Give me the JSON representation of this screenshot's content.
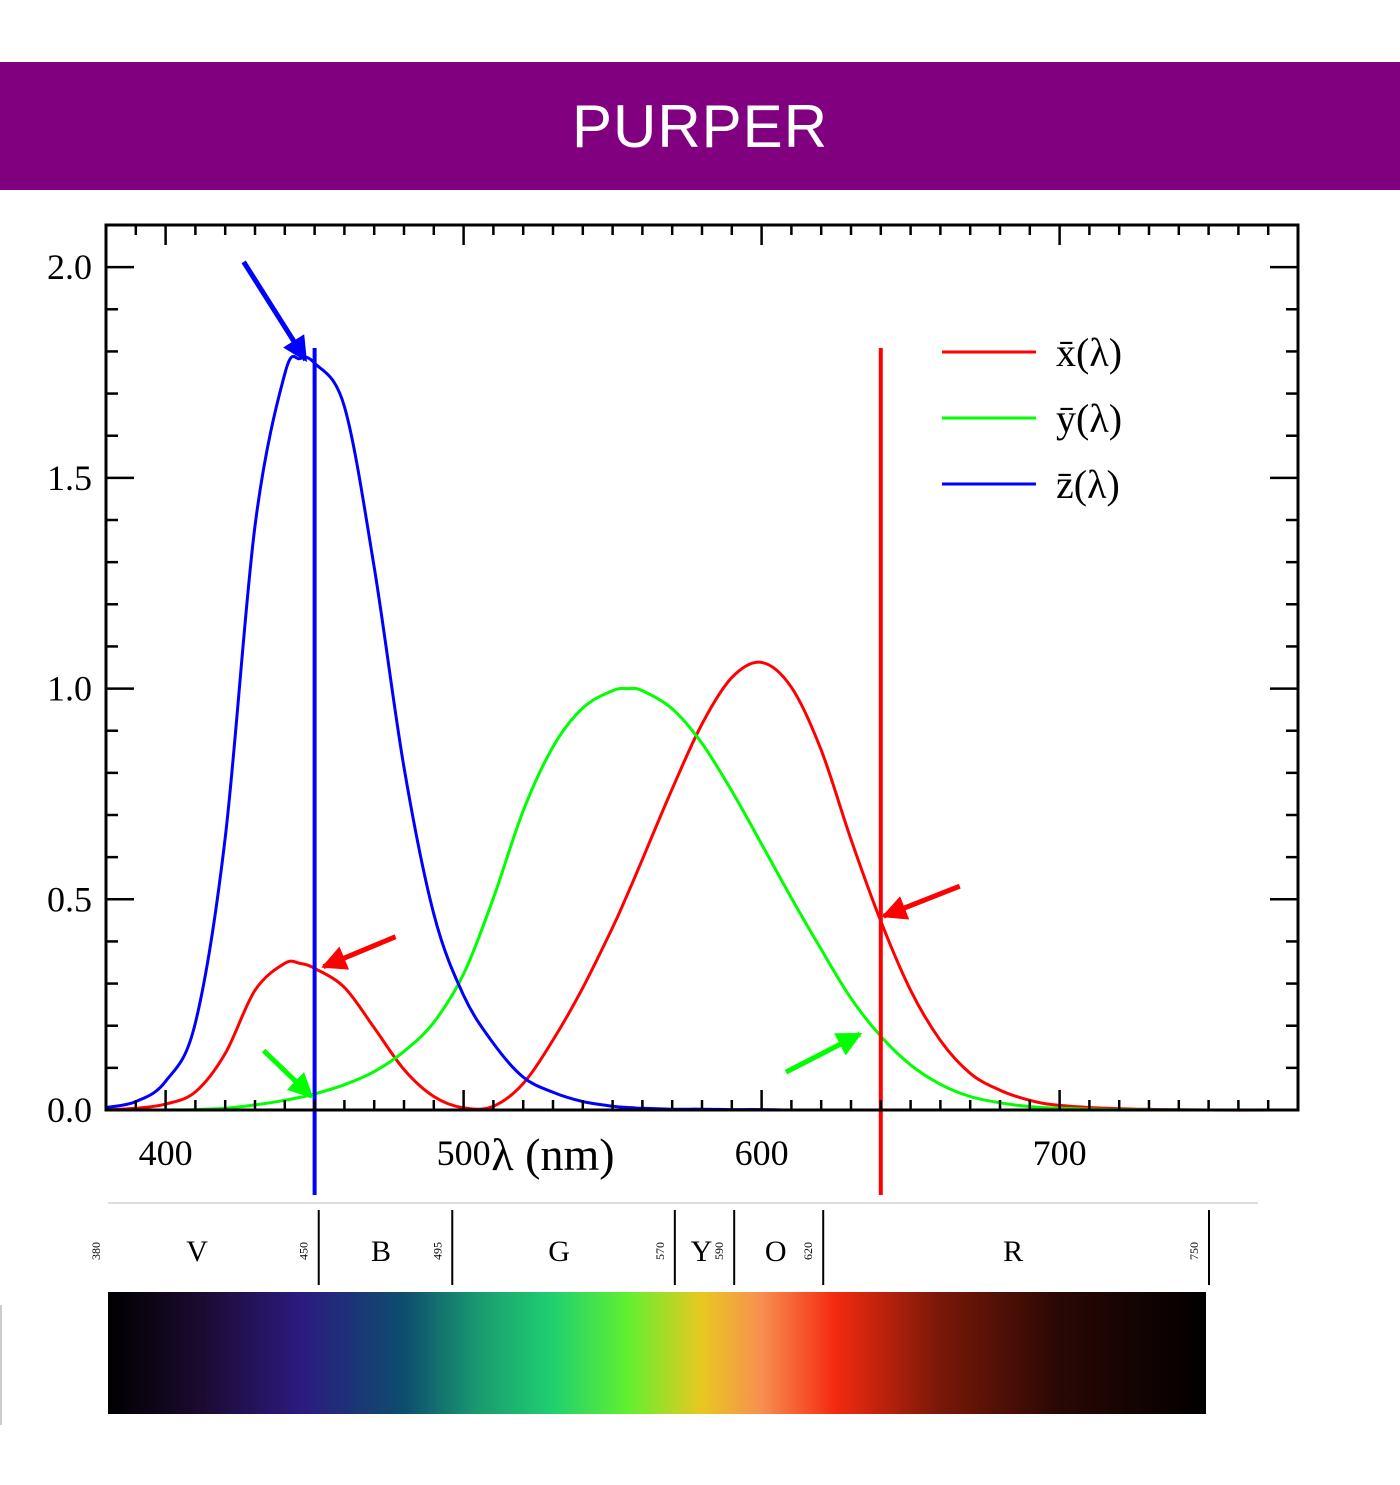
{
  "banner": {
    "title": "PURPER"
  },
  "chart_data": {
    "type": "line",
    "title": "",
    "xlabel": "λ (nm)",
    "ylabel": "",
    "xlim": [
      380,
      780
    ],
    "ylim": [
      0,
      2.1
    ],
    "xticks": [
      400,
      500,
      600,
      700
    ],
    "xtick_labels": [
      "400",
      "500",
      "600",
      "700"
    ],
    "yticks": [
      0,
      0.5,
      1,
      1.5,
      2
    ],
    "ytick_labels": [
      "0.0",
      "0.5",
      "1.0",
      "1.5",
      "2.0"
    ],
    "grid": false,
    "legend": "top-right",
    "x": [
      380,
      390,
      400,
      410,
      420,
      430,
      440,
      445,
      450,
      460,
      470,
      480,
      490,
      500,
      510,
      520,
      530,
      540,
      550,
      555,
      560,
      570,
      580,
      590,
      600,
      610,
      620,
      630,
      640,
      650,
      660,
      670,
      680,
      690,
      700,
      720,
      750,
      780
    ],
    "series": [
      {
        "name": "x̄(λ)",
        "color": "#ff0000",
        "values": [
          0.001,
          0.004,
          0.014,
          0.043,
          0.134,
          0.284,
          0.348,
          0.348,
          0.336,
          0.291,
          0.195,
          0.096,
          0.032,
          0.005,
          0.009,
          0.063,
          0.166,
          0.29,
          0.433,
          0.512,
          0.595,
          0.762,
          0.916,
          1.026,
          1.062,
          1.003,
          0.854,
          0.642,
          0.448,
          0.284,
          0.165,
          0.087,
          0.047,
          0.023,
          0.011,
          0.003,
          0.0,
          0.0
        ]
      },
      {
        "name": "ȳ(λ)",
        "color": "#00ff00",
        "values": [
          0.0,
          0.0,
          0.0,
          0.001,
          0.004,
          0.012,
          0.023,
          0.03,
          0.038,
          0.06,
          0.091,
          0.139,
          0.208,
          0.323,
          0.503,
          0.71,
          0.862,
          0.954,
          0.995,
          1.0,
          0.995,
          0.952,
          0.87,
          0.757,
          0.631,
          0.503,
          0.381,
          0.265,
          0.175,
          0.107,
          0.061,
          0.032,
          0.017,
          0.008,
          0.004,
          0.001,
          0.0,
          0.0
        ]
      },
      {
        "name": "z̄(λ)",
        "color": "#0000ff",
        "values": [
          0.006,
          0.02,
          0.068,
          0.207,
          0.646,
          1.386,
          1.747,
          1.783,
          1.772,
          1.669,
          1.288,
          0.813,
          0.465,
          0.272,
          0.158,
          0.078,
          0.042,
          0.02,
          0.009,
          0.006,
          0.004,
          0.002,
          0.002,
          0.001,
          0.001,
          0.0,
          0.0,
          0.0,
          0.0,
          0.0,
          0.0,
          0.0,
          0.0,
          0.0,
          0.0,
          0.0,
          0.0,
          0.0
        ]
      }
    ],
    "annotations": {
      "vertical_lines": [
        {
          "x": 450,
          "color": "#0000ff"
        },
        {
          "x": 640,
          "color": "#ff0000"
        }
      ],
      "arrow_targets": [
        {
          "x": 447,
          "y": 1.78,
          "color": "#0000ff"
        },
        {
          "x": 453,
          "y": 0.34,
          "color": "#ff0000"
        },
        {
          "x": 449,
          "y": 0.032,
          "color": "#00ff00"
        },
        {
          "x": 641,
          "y": 0.46,
          "color": "#ff0000"
        },
        {
          "x": 633,
          "y": 0.18,
          "color": "#00ff00"
        }
      ]
    }
  },
  "spectrum": {
    "range_nm": [
      380,
      750
    ],
    "bands": [
      {
        "letter": "V",
        "center": 410
      },
      {
        "letter": "B",
        "center": 472
      },
      {
        "letter": "G",
        "center": 532
      },
      {
        "letter": "Y",
        "center": 580
      },
      {
        "letter": "O",
        "center": 605
      },
      {
        "letter": "R",
        "center": 685
      }
    ],
    "boundaries": [
      {
        "nm": 380,
        "label": "380",
        "divider": false
      },
      {
        "nm": 450,
        "label": "450",
        "divider": true
      },
      {
        "nm": 495,
        "label": "495",
        "divider": true
      },
      {
        "nm": 570,
        "label": "570",
        "divider": true
      },
      {
        "nm": 590,
        "label": "590",
        "divider": true
      },
      {
        "nm": 620,
        "label": "620",
        "divider": true
      },
      {
        "nm": 750,
        "label": "750",
        "divider": true
      }
    ],
    "gradient": [
      {
        "nm": 380,
        "color": "#000000"
      },
      {
        "nm": 410,
        "color": "#1a0a2e"
      },
      {
        "nm": 445,
        "color": "#2c1a80"
      },
      {
        "nm": 480,
        "color": "#0d4e6e"
      },
      {
        "nm": 505,
        "color": "#1a9a70"
      },
      {
        "nm": 530,
        "color": "#20d070"
      },
      {
        "nm": 555,
        "color": "#60f030"
      },
      {
        "nm": 580,
        "color": "#e8c820"
      },
      {
        "nm": 600,
        "color": "#f79050"
      },
      {
        "nm": 625,
        "color": "#f42a10"
      },
      {
        "nm": 660,
        "color": "#7a1808"
      },
      {
        "nm": 700,
        "color": "#2a0804"
      },
      {
        "nm": 750,
        "color": "#000000"
      }
    ]
  }
}
